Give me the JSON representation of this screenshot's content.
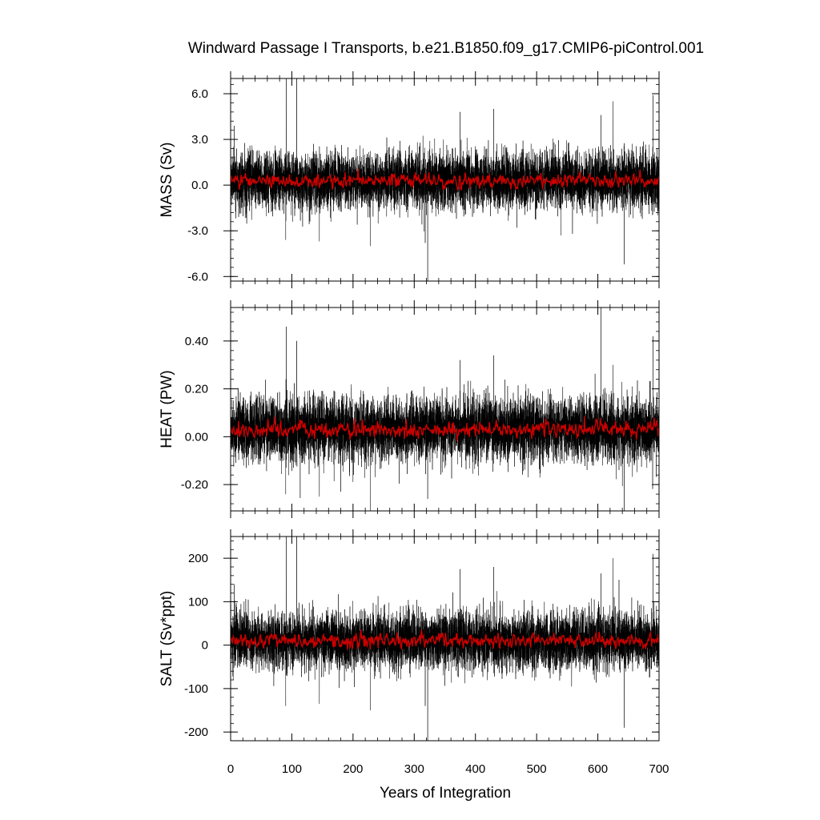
{
  "chart_data": {
    "type": "line",
    "title": "Windward Passage I Transports, b.e21.B1850.f09_g17.CMIP6-piControl.001",
    "xlabel": "Years of Integration",
    "xlim": [
      0,
      700
    ],
    "xticks": [
      0,
      100,
      200,
      300,
      400,
      500,
      600,
      700
    ],
    "grid": false,
    "colors": {
      "raw": "#000000",
      "smoothed": "#cc0000"
    },
    "panels": [
      {
        "ylabel": "MASS (Sv)",
        "ylim": [
          -6.3,
          7.0
        ],
        "yticks": [
          -6.0,
          -3.0,
          0.0,
          3.0,
          6.0
        ],
        "ytick_labels": [
          "-6.0",
          "-3.0",
          "0.0",
          "3.0",
          "6.0"
        ],
        "mean": 0.3,
        "std": 0.9,
        "smoothed_std": 0.22,
        "spikes": [
          [
            91,
            7.0
          ],
          [
            108,
            7.0
          ],
          [
            375,
            4.8
          ],
          [
            430,
            5.0
          ],
          [
            605,
            4.6
          ],
          [
            625,
            5.5
          ],
          [
            690,
            5.9
          ],
          [
            6,
            3.9
          ],
          [
            322,
            -6.3
          ],
          [
            228,
            -4.0
          ],
          [
            643,
            -5.2
          ],
          [
            145,
            -3.7
          ],
          [
            90,
            -3.6
          ],
          [
            318,
            -3.8
          ],
          [
            540,
            -3.3
          ]
        ]
      },
      {
        "ylabel": "HEAT (PW)",
        "ylim": [
          -0.31,
          0.54
        ],
        "yticks": [
          -0.2,
          0.0,
          0.2,
          0.4
        ],
        "ytick_labels": [
          "-0.20",
          "0.00",
          "0.20",
          "0.40"
        ],
        "mean": 0.03,
        "std": 0.065,
        "smoothed_std": 0.016,
        "spikes": [
          [
            91,
            0.46
          ],
          [
            108,
            0.4
          ],
          [
            605,
            0.54
          ],
          [
            625,
            0.3
          ],
          [
            690,
            0.42
          ],
          [
            375,
            0.32
          ],
          [
            430,
            0.34
          ],
          [
            228,
            -0.31
          ],
          [
            643,
            -0.31
          ],
          [
            322,
            -0.26
          ],
          [
            145,
            -0.25
          ],
          [
            90,
            -0.24
          ]
        ]
      },
      {
        "ylabel": "SALT (Sv*ppt)",
        "ylim": [
          -220,
          250
        ],
        "yticks": [
          -200,
          -100,
          0,
          100,
          200
        ],
        "ytick_labels": [
          "-200",
          "-100",
          "0",
          "100",
          "200"
        ],
        "mean": 10,
        "std": 32,
        "smoothed_std": 8,
        "spikes": [
          [
            91,
            250
          ],
          [
            108,
            250
          ],
          [
            375,
            175
          ],
          [
            430,
            180
          ],
          [
            605,
            165
          ],
          [
            625,
            200
          ],
          [
            690,
            210
          ],
          [
            6,
            140
          ],
          [
            322,
            -220
          ],
          [
            228,
            -150
          ],
          [
            643,
            -190
          ],
          [
            145,
            -135
          ],
          [
            90,
            -140
          ],
          [
            318,
            -140
          ]
        ]
      }
    ]
  }
}
